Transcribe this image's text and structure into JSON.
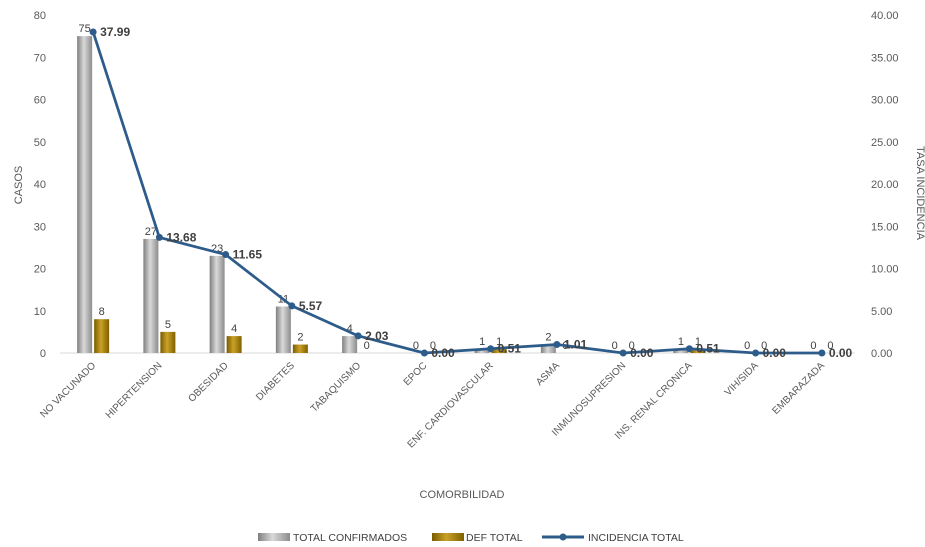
{
  "chart_data": {
    "type": "bar",
    "categories": [
      "NO VACUNADO",
      "HIPERTENSION",
      "OBESIDAD",
      "DIABETES",
      "TABAQUISMO",
      "EPOC",
      "ENF. CARDIOVASCULAR",
      "ASMA",
      "INMUNOSUPRESION",
      "INS. RENAL CRONICA",
      "VIH/SIDA",
      "EMBARAZADA"
    ],
    "series": [
      {
        "name": "TOTAL CONFIRMADOS",
        "type": "bar",
        "axis": "left",
        "color": "#a6a6a6",
        "values": [
          75,
          27,
          23,
          11,
          4,
          0,
          1,
          2,
          0,
          1,
          0,
          0
        ]
      },
      {
        "name": "DEF TOTAL",
        "type": "bar",
        "axis": "left",
        "color": "#a07d00",
        "values": [
          8,
          5,
          4,
          2,
          0,
          0,
          1,
          0,
          0,
          1,
          0,
          0
        ]
      },
      {
        "name": "INCIDENCIA TOTAL",
        "type": "line",
        "axis": "right",
        "color": "#2e5c8a",
        "values": [
          37.99,
          13.68,
          11.65,
          5.57,
          2.03,
          0.0,
          0.51,
          1.01,
          0.0,
          0.51,
          0.0,
          0.0
        ]
      }
    ],
    "xlabel": "COMORBILIDAD",
    "ylabel": "CASOS",
    "y2label": "TASA INCIDENCIA",
    "ylim": [
      0,
      80
    ],
    "y2lim": [
      0,
      40
    ],
    "yticks": [
      "0",
      "10",
      "20",
      "30",
      "40",
      "50",
      "60",
      "70",
      "80"
    ],
    "y2ticks": [
      "0.00",
      "5.00",
      "10.00",
      "15.00",
      "20.00",
      "25.00",
      "30.00",
      "35.00",
      "40.00"
    ],
    "bar_labels": {
      "TOTAL CONFIRMADOS": [
        "75",
        "27",
        "23",
        "11",
        "4",
        "0",
        "1",
        "2",
        "0",
        "1",
        "0",
        "0"
      ],
      "DEF TOTAL": [
        "8",
        "5",
        "4",
        "2",
        "0",
        "0",
        "1",
        "0",
        "0",
        "1",
        "0",
        "0"
      ]
    },
    "line_labels": [
      "37.99",
      "13.68",
      "11.65",
      "5.57",
      "2.03",
      "0.00",
      "0.51",
      "1.01",
      "0.00",
      "0.51",
      "0.00",
      "0.00"
    ],
    "legend_position": "bottom",
    "grid": false
  }
}
